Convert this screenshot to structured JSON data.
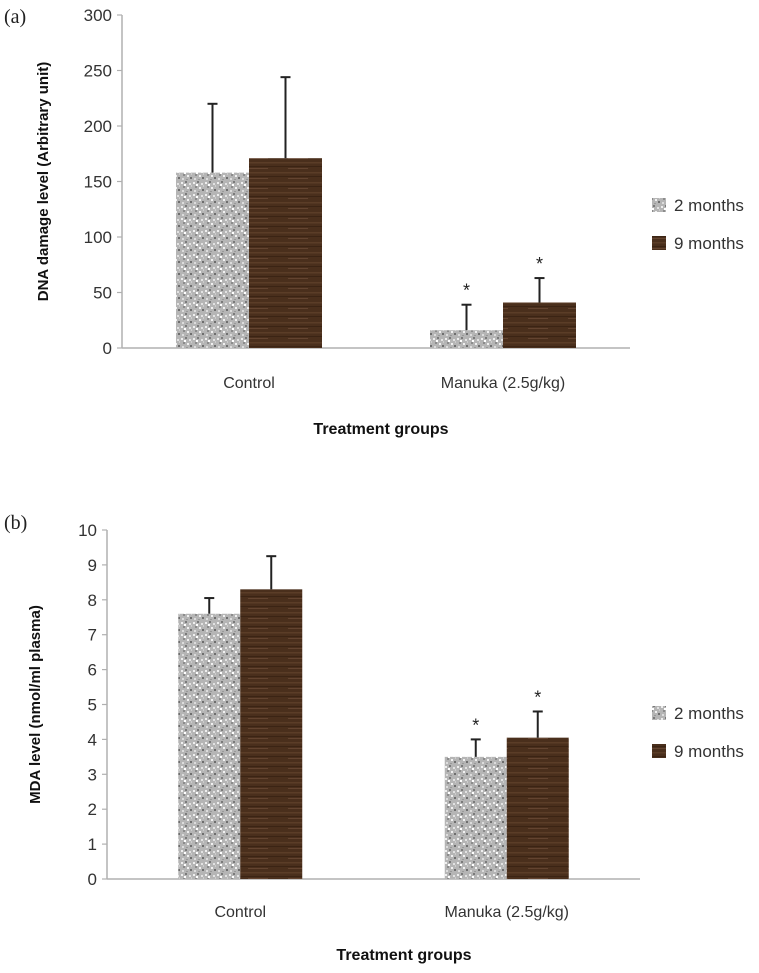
{
  "chart_data": [
    {
      "panel_label": "(a)",
      "type": "bar",
      "categories": [
        "Control",
        "Manuka (2.5g/kg)"
      ],
      "series": [
        {
          "name": "2 months",
          "values": [
            158,
            16
          ],
          "errors": [
            62,
            23
          ]
        },
        {
          "name": "9 months",
          "values": [
            171,
            41
          ],
          "errors": [
            73,
            22
          ]
        }
      ],
      "significance": [
        [
          "",
          "*"
        ],
        [
          "",
          "*"
        ]
      ],
      "xlabel": "Treatment groups",
      "ylabel": "DNA damage level (Arbitrary unit)",
      "ylim": [
        0,
        300
      ],
      "yticks": [
        "0",
        "50",
        "100",
        "150",
        "200",
        "250",
        "300"
      ],
      "legend_position": "right",
      "grid": false
    },
    {
      "panel_label": "(b)",
      "type": "bar",
      "categories": [
        "Control",
        "Manuka (2.5g/kg)"
      ],
      "series": [
        {
          "name": "2 months",
          "values": [
            7.6,
            3.5
          ],
          "errors": [
            0.45,
            0.5
          ]
        },
        {
          "name": "9 months",
          "values": [
            8.3,
            4.05
          ],
          "errors": [
            0.95,
            0.75
          ]
        }
      ],
      "significance": [
        [
          "",
          "*"
        ],
        [
          "",
          "*"
        ]
      ],
      "xlabel": "Treatment groups",
      "ylabel": "MDA level (nmol/ml plasma)",
      "ylim": [
        0,
        10
      ],
      "yticks": [
        "0",
        "1",
        "2",
        "3",
        "4",
        "5",
        "6",
        "7",
        "8",
        "9",
        "10"
      ],
      "legend_position": "right",
      "grid": false
    }
  ],
  "colors": {
    "series_2_months": "#a9a9a9",
    "series_9_months": "#4a2f1c",
    "axis": "#b0b0b0"
  }
}
